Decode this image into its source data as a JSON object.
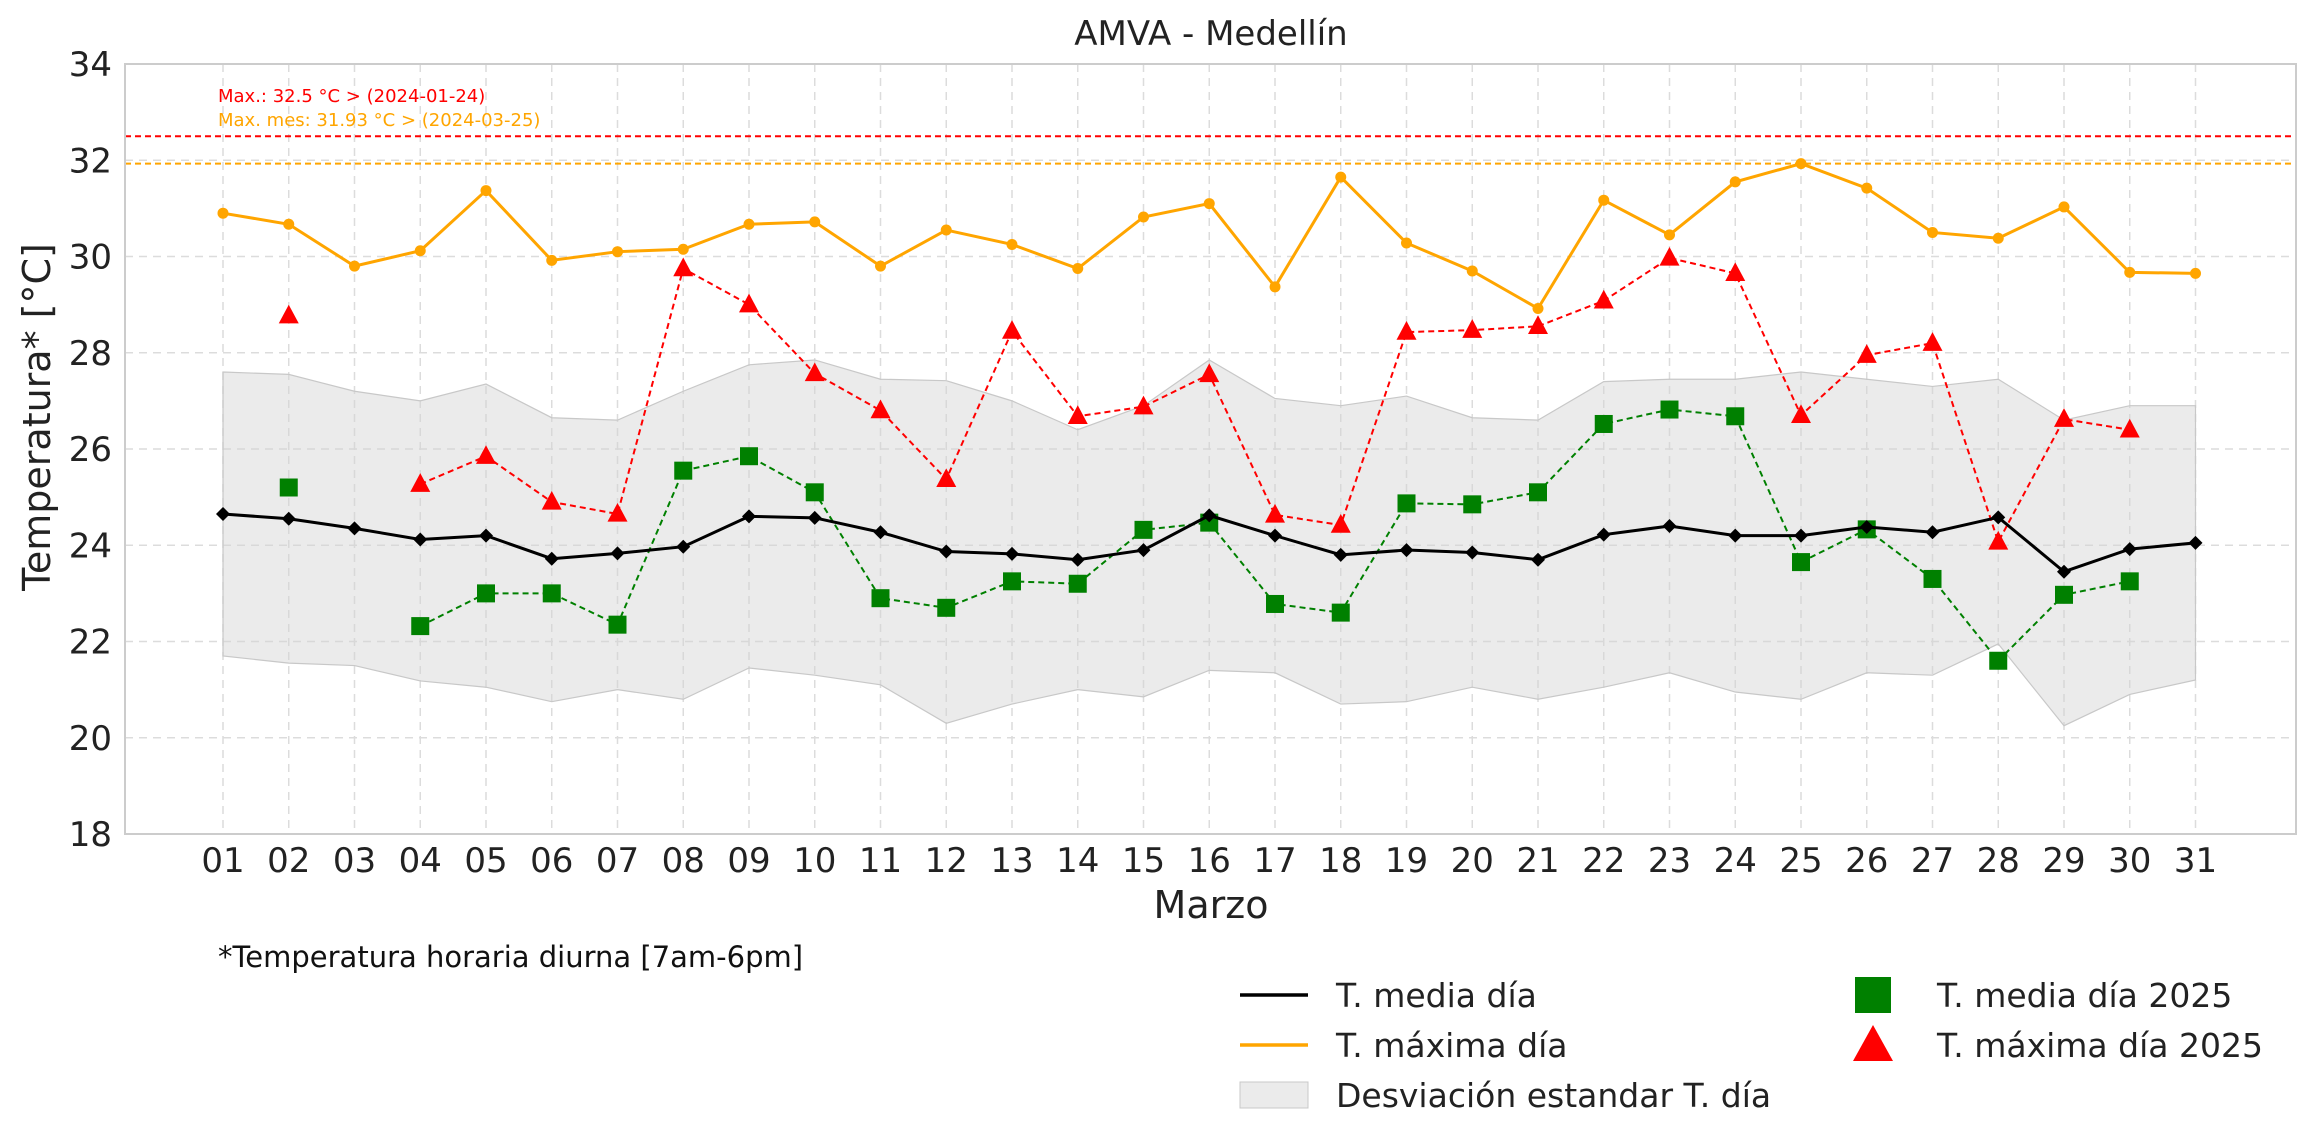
{
  "chart_data": {
    "type": "line",
    "title": "AMVA - Medellín",
    "xlabel": "Marzo",
    "ylabel": "Temperatura* [°C]",
    "footnote": "*Temperatura horaria diurna [7am-6pm]",
    "categories": [
      "01",
      "02",
      "03",
      "04",
      "05",
      "06",
      "07",
      "08",
      "09",
      "10",
      "11",
      "12",
      "13",
      "14",
      "15",
      "16",
      "17",
      "18",
      "19",
      "20",
      "21",
      "22",
      "23",
      "24",
      "25",
      "26",
      "27",
      "28",
      "29",
      "30",
      "31"
    ],
    "ylim": [
      18,
      34
    ],
    "yticks": [
      18,
      20,
      22,
      24,
      26,
      28,
      30,
      32,
      34
    ],
    "grid": true,
    "series": [
      {
        "name": "T. media día",
        "kind": "line",
        "color": "#000000",
        "marker": "diamond",
        "values": [
          24.65,
          24.55,
          24.35,
          24.12,
          24.2,
          23.72,
          23.83,
          23.97,
          24.6,
          24.57,
          24.27,
          23.87,
          23.82,
          23.7,
          23.9,
          24.62,
          24.2,
          23.8,
          23.9,
          23.85,
          23.7,
          24.22,
          24.4,
          24.2,
          24.2,
          24.38,
          24.27,
          24.58,
          23.45,
          23.92,
          24.05
        ]
      },
      {
        "name": "T. máxima día",
        "kind": "line",
        "color": "#FFA500",
        "marker": "circle",
        "values": [
          30.9,
          30.67,
          29.8,
          30.12,
          31.37,
          29.92,
          30.1,
          30.15,
          30.67,
          30.72,
          29.8,
          30.55,
          30.25,
          29.75,
          30.82,
          31.1,
          29.37,
          31.65,
          30.28,
          29.7,
          28.92,
          31.17,
          30.45,
          31.55,
          31.93,
          31.42,
          30.5,
          30.38,
          31.03,
          29.67,
          29.65
        ]
      },
      {
        "name": "Desviación estandar T. día",
        "kind": "band",
        "color": "#d3d3d3",
        "upper": [
          27.6,
          27.55,
          27.2,
          27.0,
          27.35,
          26.65,
          26.6,
          27.2,
          27.75,
          27.85,
          27.45,
          27.42,
          27.0,
          26.4,
          26.9,
          27.85,
          27.05,
          26.9,
          27.1,
          26.65,
          26.6,
          27.4,
          27.45,
          27.45,
          27.6,
          27.45,
          27.3,
          27.45,
          26.6,
          26.9,
          26.9
        ],
        "lower": [
          21.7,
          21.55,
          21.5,
          21.18,
          21.05,
          20.75,
          21.0,
          20.8,
          21.45,
          21.3,
          21.1,
          20.3,
          20.7,
          21.0,
          20.85,
          21.4,
          21.35,
          20.7,
          20.75,
          21.05,
          20.8,
          21.05,
          21.35,
          20.95,
          20.8,
          21.35,
          21.3,
          21.95,
          20.25,
          20.9,
          21.2
        ]
      },
      {
        "name": "T. media día 2025",
        "kind": "markers",
        "color": "#008000",
        "marker": "square",
        "values": [
          null,
          25.2,
          null,
          22.32,
          23.0,
          23.0,
          22.35,
          25.55,
          25.85,
          25.1,
          22.9,
          22.7,
          23.25,
          23.2,
          24.32,
          24.47,
          22.78,
          22.6,
          24.87,
          24.85,
          25.1,
          26.52,
          26.82,
          26.68,
          23.65,
          24.33,
          23.3,
          21.6,
          22.97,
          23.25,
          null
        ]
      },
      {
        "name": "T. máxima día 2025",
        "kind": "markers",
        "color": "#FF0000",
        "marker": "triangle",
        "values": [
          null,
          28.77,
          null,
          25.27,
          25.85,
          24.9,
          24.65,
          29.75,
          29.0,
          27.57,
          26.8,
          25.37,
          28.45,
          26.68,
          26.88,
          27.55,
          24.63,
          24.42,
          28.43,
          28.47,
          28.55,
          29.08,
          29.97,
          29.65,
          26.7,
          27.95,
          28.2,
          24.07,
          26.62,
          26.4,
          null
        ]
      }
    ],
    "reference_lines": [
      {
        "label": "Max.: 32.5 °C  >  (2024-01-24)",
        "value": 32.5,
        "color": "#FF0000"
      },
      {
        "label": "Max. mes: 31.93 °C  >  (2024-03-25)",
        "value": 31.93,
        "color": "#FFA500"
      }
    ],
    "legend": {
      "placement": "bottom-right"
    }
  }
}
